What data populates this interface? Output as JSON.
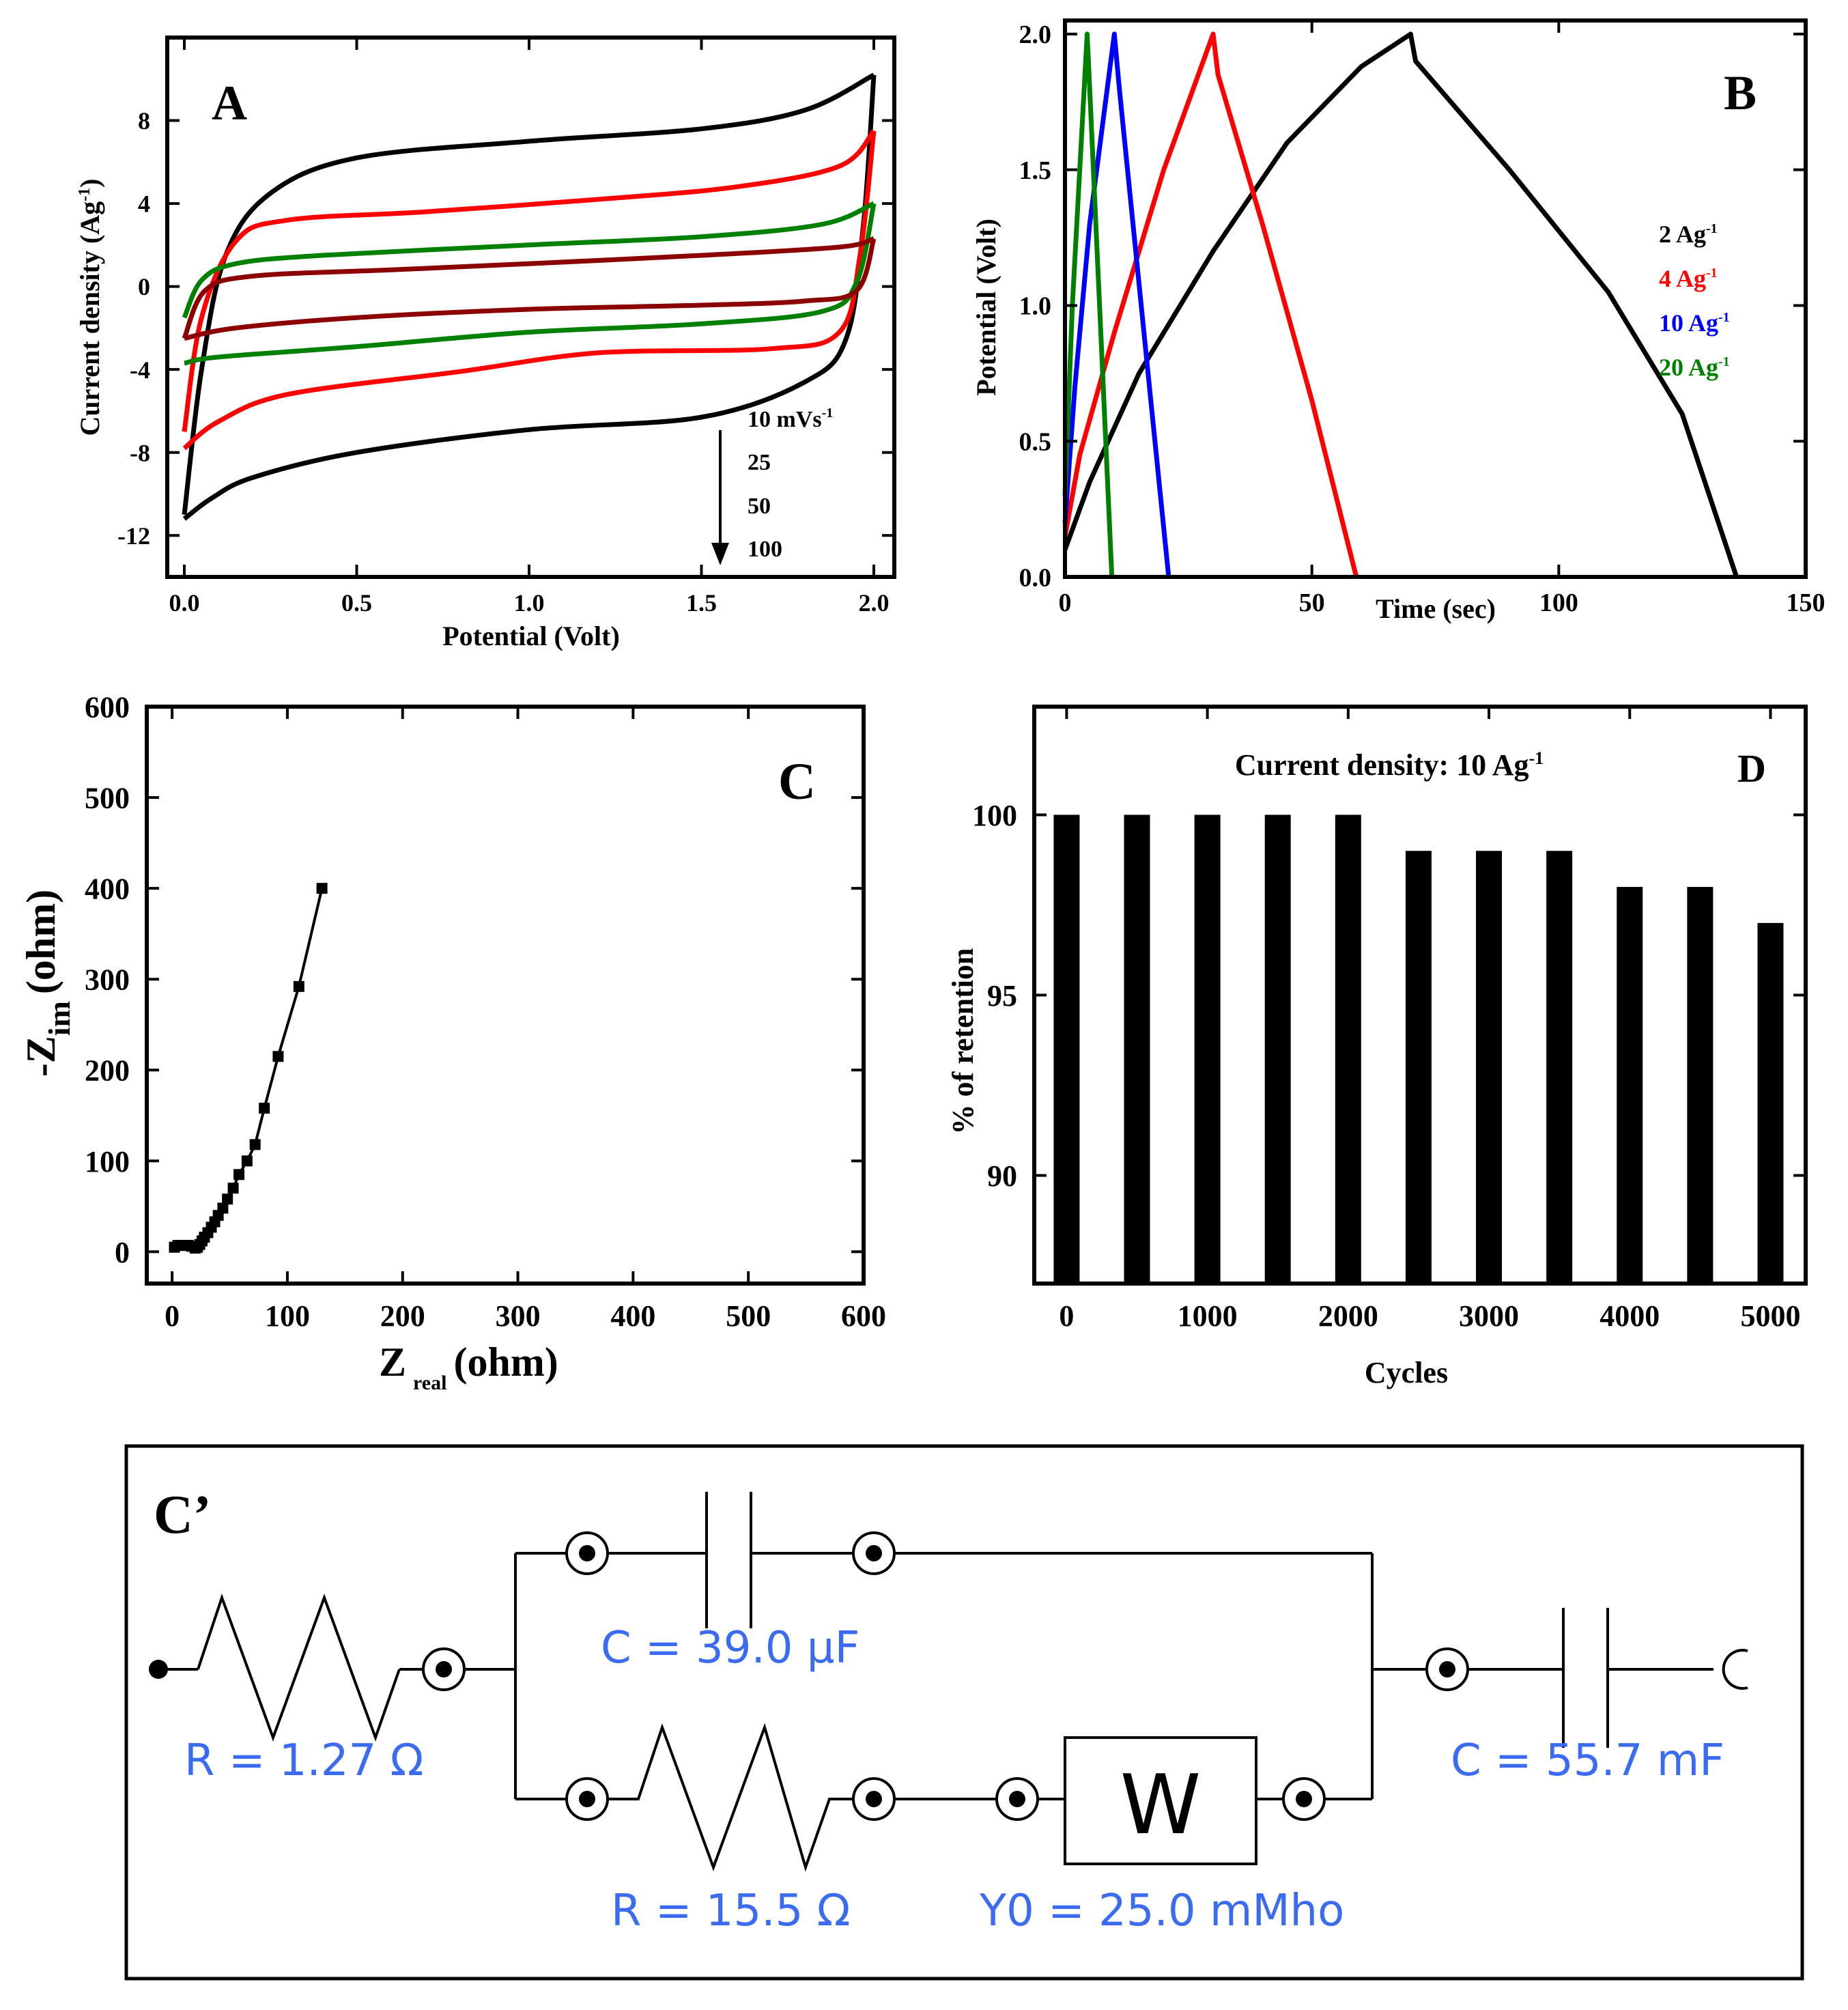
{
  "chart_data": [
    {
      "panel": "A",
      "type": "line",
      "xlabel": "Potential (Volt)",
      "ylabel": "Current density (Ag",
      "ylabel_sup": "-1",
      "ylabel_close": ")",
      "xlim": [
        0.0,
        2.0
      ],
      "ylim": [
        -14,
        12
      ],
      "xticks": [
        0.0,
        0.5,
        1.0,
        1.5,
        2.0
      ],
      "xtick_labels": [
        "0.0",
        "0.5",
        "1.0",
        "1.5",
        "2.0"
      ],
      "yticks": [
        -12,
        -8,
        -4,
        0,
        4,
        8
      ],
      "ytick_labels": [
        "-12",
        "-8",
        "-4",
        "0",
        "4",
        "8"
      ],
      "annotation_lines": [
        "10 mVs",
        "25",
        "50",
        "100"
      ],
      "annotation_sup": "-1",
      "series": [
        {
          "name": "10 mVs-1",
          "color": "#000000",
          "upper": [
            [
              0.0,
              -11
            ],
            [
              0.05,
              -4
            ],
            [
              0.12,
              1.5
            ],
            [
              0.25,
              4.5
            ],
            [
              0.5,
              6.2
            ],
            [
              1.0,
              7.0
            ],
            [
              1.5,
              7.6
            ],
            [
              1.8,
              8.5
            ],
            [
              2.0,
              10.2
            ]
          ],
          "lower": [
            [
              2.0,
              10.2
            ],
            [
              1.97,
              3
            ],
            [
              1.92,
              -2.5
            ],
            [
              1.8,
              -4.6
            ],
            [
              1.5,
              -6.3
            ],
            [
              1.0,
              -6.9
            ],
            [
              0.5,
              -8.0
            ],
            [
              0.2,
              -9.2
            ],
            [
              0.08,
              -10.2
            ],
            [
              0.0,
              -11.2
            ]
          ]
        },
        {
          "name": "25",
          "color": "#ff0000",
          "upper": [
            [
              0.0,
              -7
            ],
            [
              0.05,
              -1.5
            ],
            [
              0.15,
              2.2
            ],
            [
              0.3,
              3.2
            ],
            [
              0.7,
              3.6
            ],
            [
              1.2,
              4.2
            ],
            [
              1.6,
              4.8
            ],
            [
              1.9,
              5.8
            ],
            [
              2.0,
              7.5
            ]
          ],
          "lower": [
            [
              2.0,
              7.5
            ],
            [
              1.96,
              1.5
            ],
            [
              1.9,
              -2.2
            ],
            [
              1.7,
              -3.0
            ],
            [
              1.2,
              -3.2
            ],
            [
              0.8,
              -4.1
            ],
            [
              0.3,
              -5.2
            ],
            [
              0.1,
              -6.5
            ],
            [
              0.0,
              -7.8
            ]
          ]
        },
        {
          "name": "50",
          "color": "#008000",
          "upper": [
            [
              0.0,
              -1.5
            ],
            [
              0.05,
              0.3
            ],
            [
              0.15,
              1.1
            ],
            [
              0.4,
              1.5
            ],
            [
              1.0,
              2.0
            ],
            [
              1.5,
              2.4
            ],
            [
              1.85,
              3.0
            ],
            [
              2.0,
              4.0
            ]
          ],
          "lower": [
            [
              2.0,
              4.0
            ],
            [
              1.95,
              0.2
            ],
            [
              1.85,
              -1.2
            ],
            [
              1.5,
              -1.8
            ],
            [
              1.0,
              -2.2
            ],
            [
              0.5,
              -2.9
            ],
            [
              0.1,
              -3.4
            ],
            [
              0.0,
              -3.7
            ]
          ]
        },
        {
          "name": "100",
          "color": "#8b0000",
          "upper": [
            [
              0.0,
              -2.5
            ],
            [
              0.06,
              -0.2
            ],
            [
              0.2,
              0.5
            ],
            [
              0.6,
              0.8
            ],
            [
              1.0,
              1.1
            ],
            [
              1.5,
              1.5
            ],
            [
              1.9,
              1.9
            ],
            [
              2.0,
              2.3
            ]
          ],
          "lower": [
            [
              2.0,
              2.3
            ],
            [
              1.95,
              -0.2
            ],
            [
              1.8,
              -0.7
            ],
            [
              1.5,
              -0.9
            ],
            [
              1.0,
              -1.1
            ],
            [
              0.5,
              -1.5
            ],
            [
              0.15,
              -2.0
            ],
            [
              0.0,
              -2.5
            ]
          ]
        }
      ]
    },
    {
      "panel": "B",
      "type": "line",
      "xlabel": "Time (sec)",
      "ylabel": "Potential (Volt)",
      "xlim": [
        0,
        150
      ],
      "ylim": [
        0.0,
        2.05
      ],
      "xticks": [
        0,
        50,
        100,
        150
      ],
      "xtick_labels": [
        "0",
        "50",
        "100",
        "150"
      ],
      "yticks": [
        0.0,
        0.5,
        1.0,
        1.5,
        2.0
      ],
      "ytick_labels": [
        "0.0",
        "0.5",
        "1.0",
        "1.5",
        "2.0"
      ],
      "legend_unit": "Ag",
      "legend_sup": "-1",
      "series": [
        {
          "name": "2 Ag",
          "legend": "2 Ag",
          "color": "#000000",
          "points": [
            [
              0,
              0.1
            ],
            [
              5,
              0.35
            ],
            [
              15,
              0.75
            ],
            [
              30,
              1.2
            ],
            [
              45,
              1.6
            ],
            [
              60,
              1.88
            ],
            [
              70,
              2.0
            ],
            [
              71,
              1.9
            ],
            [
              90,
              1.5
            ],
            [
              110,
              1.05
            ],
            [
              125,
              0.6
            ],
            [
              136,
              0.0
            ]
          ]
        },
        {
          "name": "4 Ag",
          "legend": "4 Ag",
          "color": "#ff0000",
          "points": [
            [
              0,
              0.15
            ],
            [
              3,
              0.45
            ],
            [
              10,
              0.9
            ],
            [
              20,
              1.5
            ],
            [
              30,
              2.0
            ],
            [
              31,
              1.85
            ],
            [
              40,
              1.3
            ],
            [
              50,
              0.65
            ],
            [
              59,
              0.0
            ]
          ]
        },
        {
          "name": "10 Ag",
          "legend": "10 Ag",
          "color": "#0000ff",
          "points": [
            [
              0,
              0.2
            ],
            [
              2,
              0.7
            ],
            [
              5,
              1.3
            ],
            [
              10,
              2.0
            ],
            [
              11,
              1.8
            ],
            [
              16,
              0.9
            ],
            [
              21,
              0.0
            ]
          ]
        },
        {
          "name": "20 Ag",
          "legend": "20 Ag",
          "color": "#008000",
          "points": [
            [
              0,
              0.3
            ],
            [
              1.5,
              1.0
            ],
            [
              4.5,
              2.0
            ],
            [
              5,
              1.8
            ],
            [
              7.5,
              0.8
            ],
            [
              9.5,
              0.0
            ]
          ]
        }
      ]
    },
    {
      "panel": "C",
      "type": "scatter",
      "xlabel": "Z",
      "xlabel_sub": "real",
      "xlabel_unit": "(ohm)",
      "ylabel": "-Z",
      "ylabel_sub": "im",
      "ylabel_unit": "(ohm)",
      "xlim": [
        -20,
        600
      ],
      "ylim": [
        -30,
        600
      ],
      "xticks": [
        0,
        100,
        200,
        300,
        400,
        500,
        600
      ],
      "xtick_labels": [
        "0",
        "100",
        "200",
        "300",
        "400",
        "500",
        "600"
      ],
      "yticks": [
        0,
        100,
        200,
        300,
        400,
        500,
        600
      ],
      "ytick_labels": [
        "0",
        "100",
        "200",
        "300",
        "400",
        "500",
        "600"
      ],
      "points": [
        [
          2,
          5
        ],
        [
          5,
          7
        ],
        [
          8,
          7
        ],
        [
          11,
          7
        ],
        [
          14,
          7
        ],
        [
          17,
          6
        ],
        [
          20,
          4
        ],
        [
          22,
          5
        ],
        [
          24,
          8
        ],
        [
          26,
          12
        ],
        [
          28,
          16
        ],
        [
          31,
          21
        ],
        [
          34,
          27
        ],
        [
          37,
          33
        ],
        [
          40,
          40
        ],
        [
          44,
          48
        ],
        [
          48,
          58
        ],
        [
          53,
          70
        ],
        [
          58,
          85
        ],
        [
          65,
          100
        ],
        [
          72,
          118
        ],
        [
          80,
          158
        ],
        [
          92,
          215
        ],
        [
          110,
          292
        ],
        [
          130,
          400
        ]
      ]
    },
    {
      "panel": "D",
      "type": "bar",
      "title": "Current density: 10 Ag",
      "title_sup": "-1",
      "xlabel": "Cycles",
      "ylabel": "% of retention",
      "xlim": [
        -200,
        5200
      ],
      "ylim": [
        87,
        103
      ],
      "xticks": [
        0,
        1000,
        2000,
        3000,
        4000,
        5000
      ],
      "xtick_labels": [
        "0",
        "1000",
        "2000",
        "3000",
        "4000",
        "5000"
      ],
      "yticks": [
        90,
        95,
        100
      ],
      "ytick_labels": [
        "90",
        "95",
        "100"
      ],
      "categories": [
        0,
        500,
        1000,
        1500,
        2000,
        2500,
        3000,
        3500,
        4000,
        4500,
        5000
      ],
      "values": [
        100,
        100,
        100,
        100,
        100,
        99,
        99,
        99,
        98,
        98,
        97
      ]
    }
  ],
  "circuit": {
    "label": "C’",
    "r1": "R = 1.27 Ω",
    "c1": "C = 39.0 μF",
    "r2": "R = 15.5 Ω",
    "w_symbol": "W",
    "w_value": "Y0 = 25.0 mMho",
    "c2": "C = 55.7 mF",
    "text_color": "#3a6bf0"
  }
}
